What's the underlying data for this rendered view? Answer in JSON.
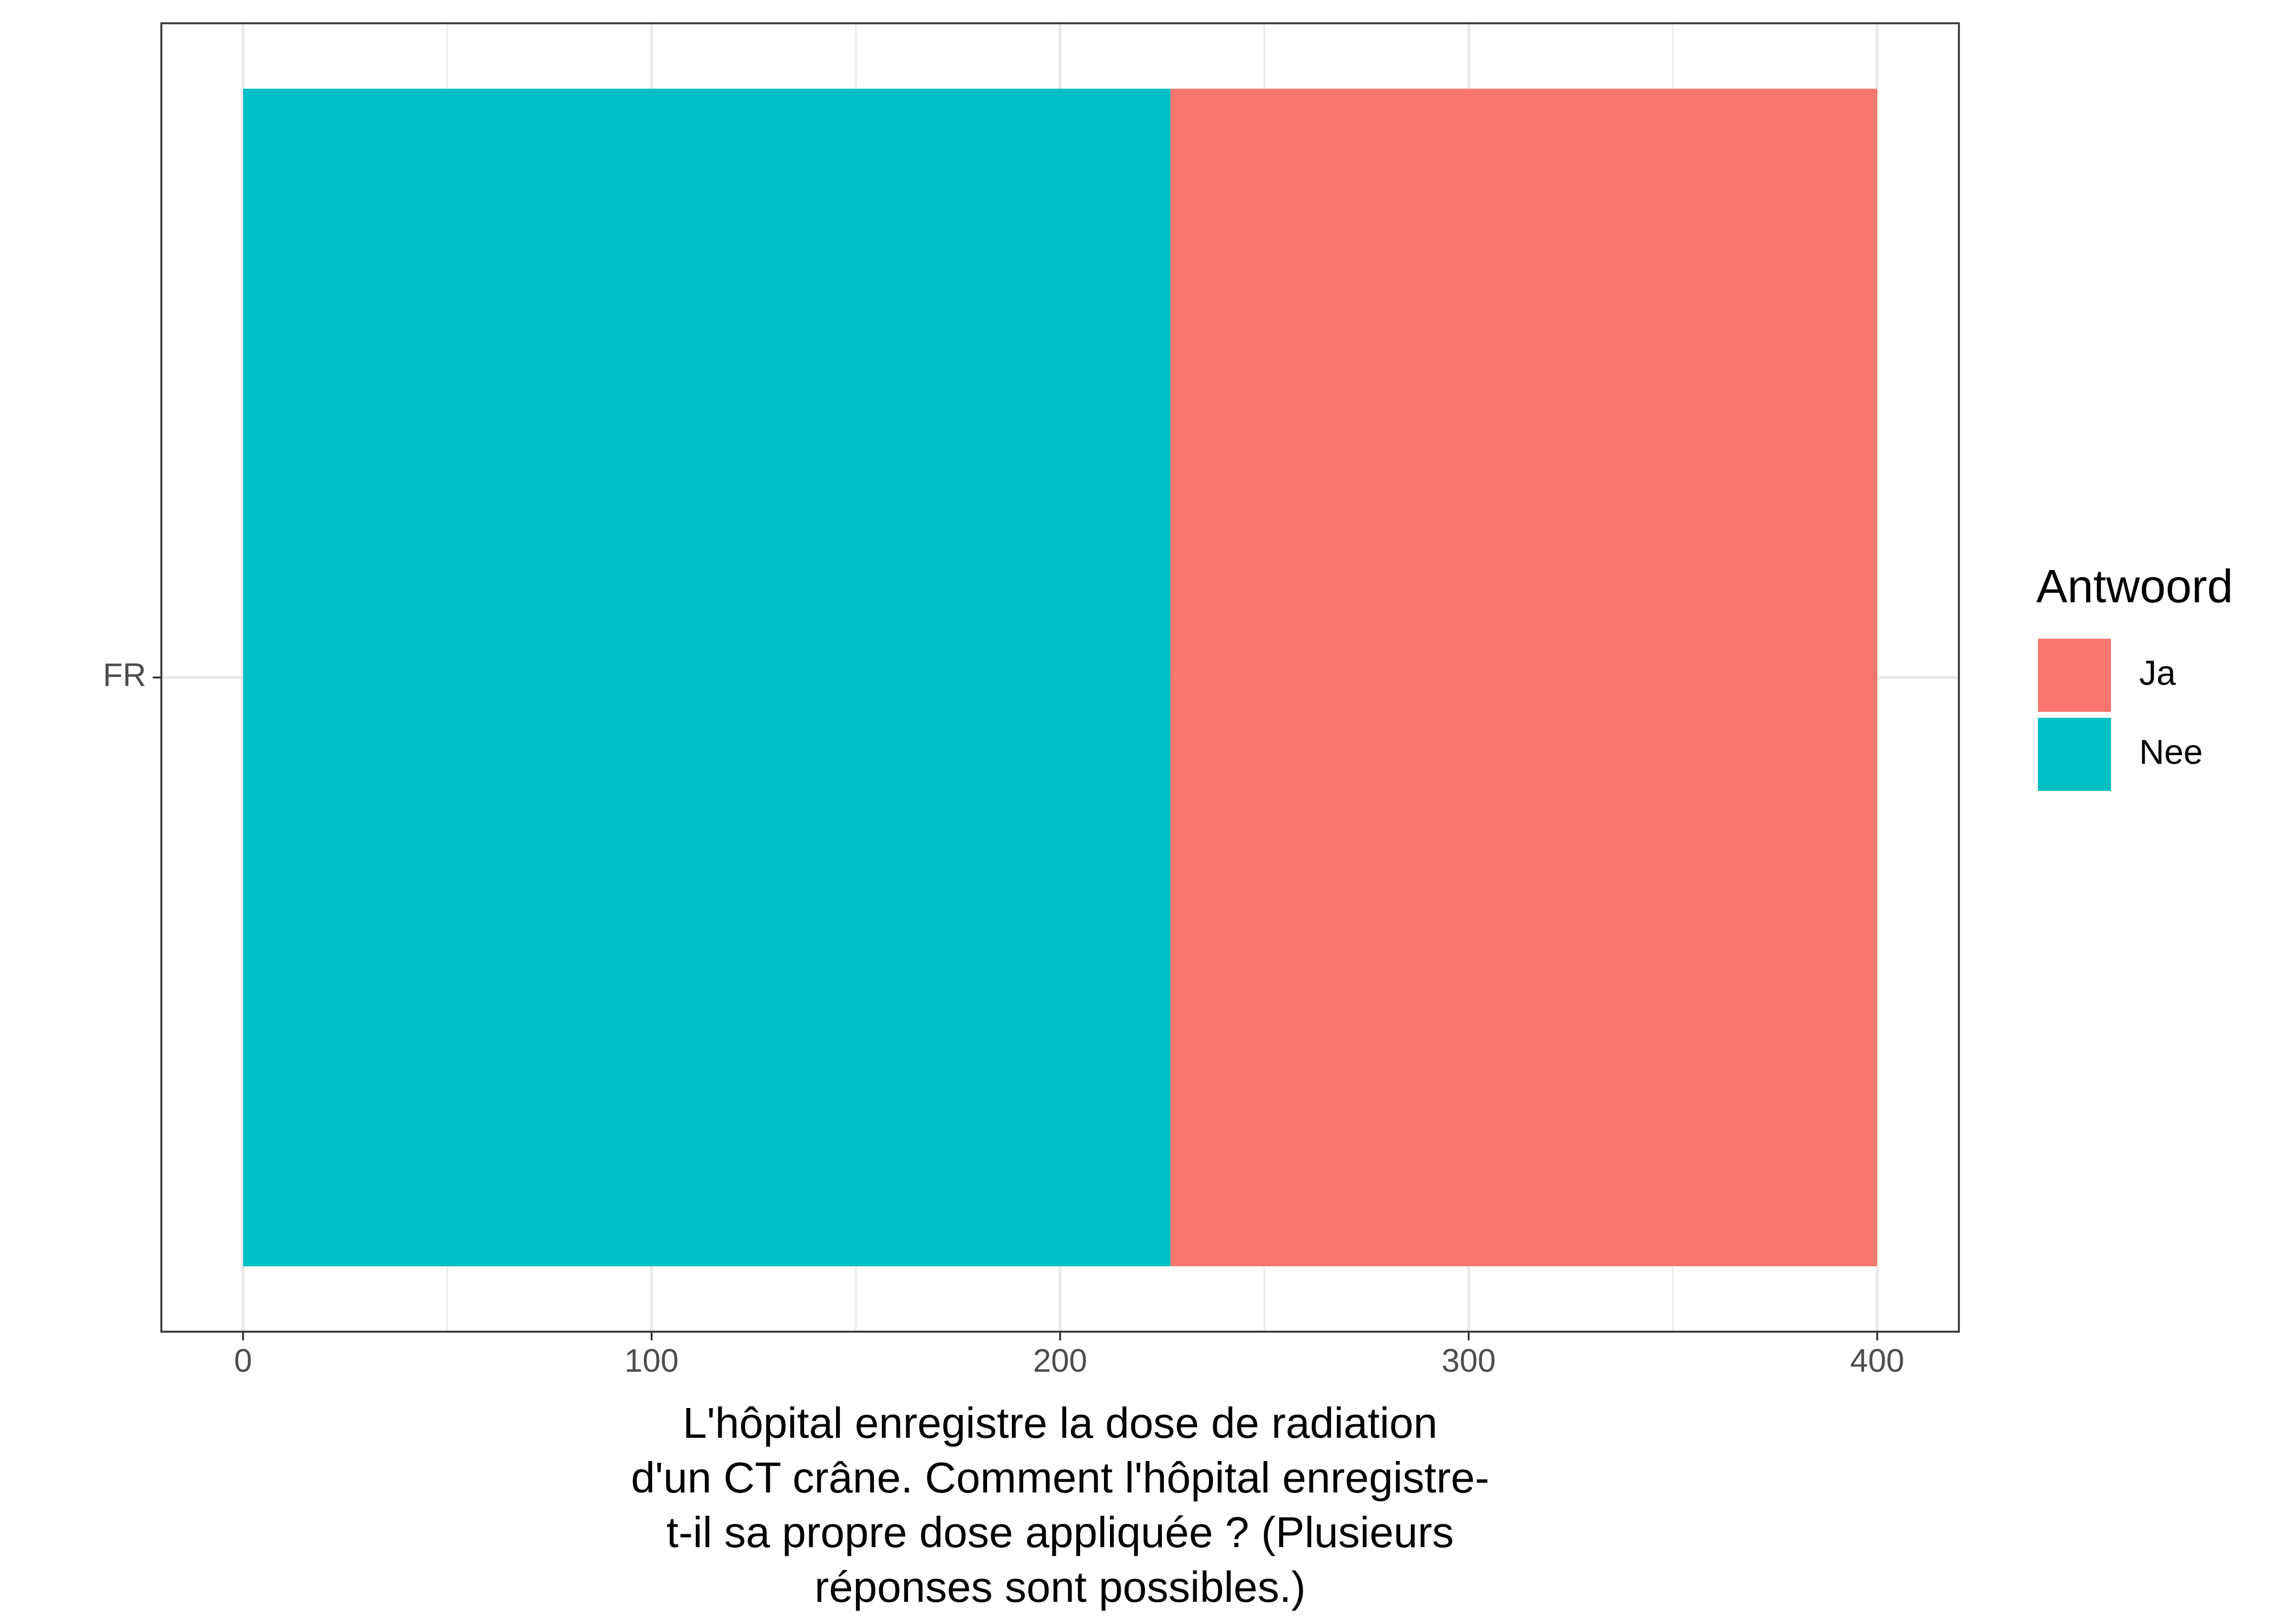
{
  "chart_data": {
    "type": "bar",
    "orientation": "horizontal",
    "stacked": true,
    "categories": [
      "FR"
    ],
    "series": [
      {
        "name": "Nee",
        "color": "#00BFC4",
        "values": [
          227
        ]
      },
      {
        "name": "Ja",
        "color": "#F8766D",
        "values": [
          173
        ]
      }
    ],
    "legend_title": "Antwoord",
    "legend_order": [
      "Ja",
      "Nee"
    ],
    "legend_position": "right",
    "x_label": [
      "L'hôpital enregistre la dose de radiation",
      "d'un CT crâne. Comment l'hôpital enregistre-",
      "t-il sa propre dose appliquée ? (Plusieurs",
      "réponses sont possibles.)"
    ],
    "xlim": [
      -20,
      420
    ],
    "xticks": [
      0,
      100,
      200,
      300,
      400
    ],
    "minor_xticks": [
      50,
      150,
      250,
      350
    ],
    "grid": true
  }
}
